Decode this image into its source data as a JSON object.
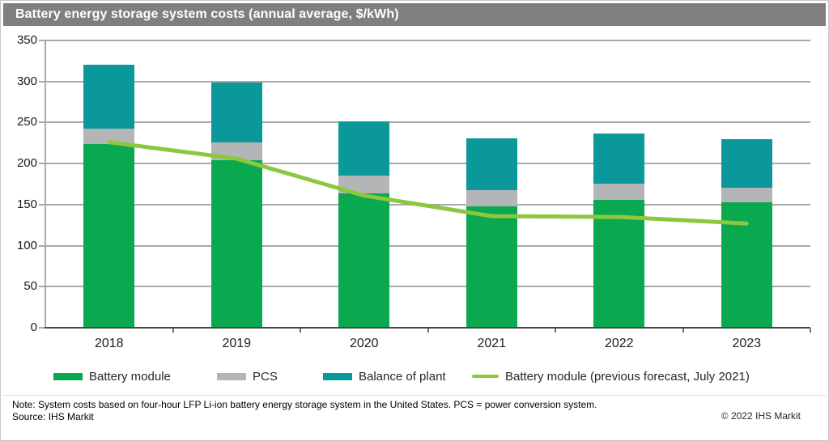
{
  "title": "Battery energy storage system costs (annual average, $/kWh)",
  "colors": {
    "title_bar": "#7f7f7f",
    "battery_module": "#0aa94f",
    "pcs": "#b4b5b7",
    "balance_of_plant": "#0a989b",
    "forecast_line": "#8dc63f",
    "gridline": "#a9a9a9",
    "x_axis": "#454545"
  },
  "chart_data": {
    "type": "bar",
    "stacked": true,
    "title": "Battery energy storage system costs (annual average, $/kWh)",
    "xlabel": "",
    "ylabel": "",
    "categories": [
      "2018",
      "2019",
      "2020",
      "2021",
      "2022",
      "2023"
    ],
    "series": [
      {
        "name": "Battery module",
        "color": "#0aa94f",
        "values": [
          223,
          203,
          163,
          147,
          155,
          152
        ]
      },
      {
        "name": "PCS",
        "color": "#b4b5b7",
        "values": [
          19,
          22,
          21,
          20,
          20,
          18
        ]
      },
      {
        "name": "Balance of plant",
        "color": "#0a989b",
        "values": [
          77,
          73,
          66,
          63,
          61,
          59
        ]
      }
    ],
    "stack_totals": [
      319,
      298,
      250,
      230,
      236,
      229
    ],
    "line_series": {
      "name": "Battery module (previous forecast, July 2021)",
      "color": "#8dc63f",
      "values": [
        225,
        205,
        160,
        135,
        134,
        126
      ]
    },
    "ylim": [
      0,
      350
    ],
    "yticks": [
      0,
      50,
      100,
      150,
      200,
      250,
      300,
      350
    ],
    "grid": true,
    "legend_position": "bottom"
  },
  "footer": {
    "note": "Note: System costs based on four-hour LFP Li-ion battery energy storage system in the United States. PCS = power conversion system.",
    "source": "Source: IHS Markit",
    "copyright": "© 2022 IHS Markit"
  }
}
